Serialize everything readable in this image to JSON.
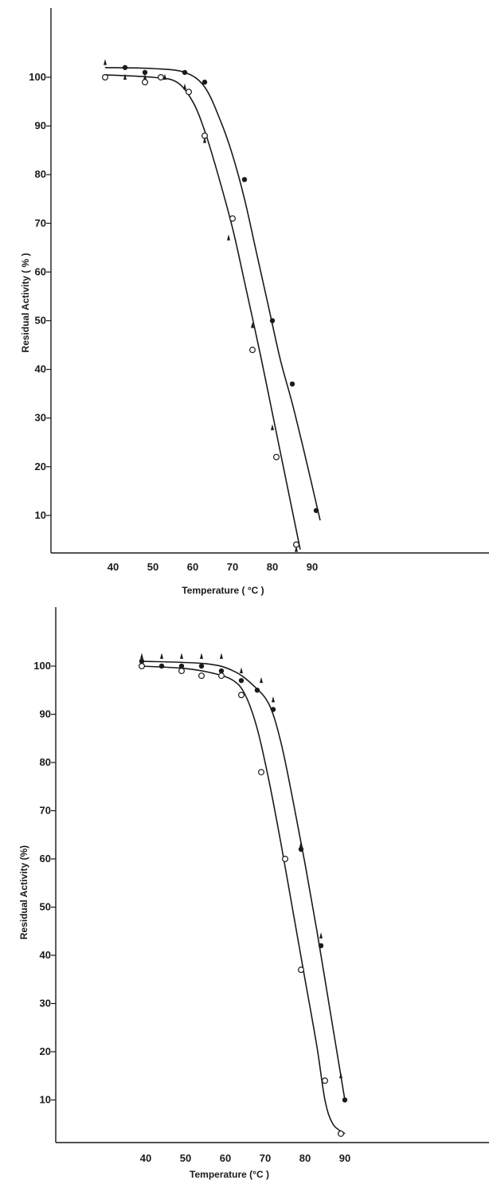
{
  "chart_data": [
    {
      "type": "line",
      "title": "",
      "xlabel": "Temperature ( °C )",
      "ylabel": "Residual Activity ( % )",
      "xlim": [
        30,
        100
      ],
      "ylim": [
        0,
        110
      ],
      "xticks": [
        40,
        50,
        60,
        70,
        80,
        90
      ],
      "yticks": [
        10,
        20,
        30,
        40,
        50,
        60,
        70,
        80,
        90,
        100
      ],
      "grid": false,
      "series": [
        {
          "marker": "filled-circle",
          "points": [
            [
              43,
              102
            ],
            [
              48,
              101
            ],
            [
              58,
              101
            ],
            [
              63,
              99
            ],
            [
              73,
              79
            ],
            [
              80,
              50
            ],
            [
              85,
              37
            ],
            [
              91,
              11
            ]
          ],
          "curve": [
            [
              38,
              102
            ],
            [
              50,
              101.8
            ],
            [
              58,
              101
            ],
            [
              63,
              98
            ],
            [
              67,
              91
            ],
            [
              70,
              84
            ],
            [
              73,
              75
            ],
            [
              76,
              64
            ],
            [
              79,
              53
            ],
            [
              82,
              42
            ],
            [
              85,
              33
            ],
            [
              88,
              23
            ],
            [
              92,
              9
            ]
          ]
        },
        {
          "marker": "open-circle",
          "points": [
            [
              38,
              100
            ],
            [
              48,
              99
            ],
            [
              52,
              100
            ],
            [
              59,
              97
            ],
            [
              63,
              88
            ],
            [
              70,
              71
            ],
            [
              75,
              44
            ],
            [
              81,
              22
            ],
            [
              86,
              4
            ]
          ],
          "curve": [
            [
              38,
              100.5
            ],
            [
              50,
              100
            ],
            [
              56,
              99
            ],
            [
              60,
              95
            ],
            [
              63,
              89
            ],
            [
              66,
              81
            ],
            [
              70,
              69
            ],
            [
              73,
              58
            ],
            [
              77,
              43
            ],
            [
              80,
              31
            ],
            [
              83,
              19
            ],
            [
              87,
              3
            ]
          ]
        },
        {
          "marker": "triangle",
          "points": [
            [
              38,
              103
            ],
            [
              43,
              100
            ],
            [
              48,
              100
            ],
            [
              53,
              100
            ],
            [
              58,
              98
            ],
            [
              63,
              87
            ],
            [
              69,
              67
            ],
            [
              75,
              49
            ],
            [
              80,
              28
            ],
            [
              86,
              3
            ]
          ]
        }
      ]
    },
    {
      "type": "line",
      "title": "",
      "xlabel": "Temperature (°C )",
      "ylabel": "Residual Activity (%)",
      "xlim": [
        30,
        100
      ],
      "ylim": [
        0,
        110
      ],
      "xticks": [
        40,
        50,
        60,
        70,
        80,
        90
      ],
      "yticks": [
        10,
        20,
        30,
        40,
        50,
        60,
        70,
        80,
        90,
        100
      ],
      "grid": false,
      "series": [
        {
          "marker": "filled-circle",
          "points": [
            [
              39,
              101
            ],
            [
              44,
              100
            ],
            [
              49,
              100
            ],
            [
              54,
              100
            ],
            [
              59,
              99
            ],
            [
              64,
              97
            ],
            [
              68,
              95
            ],
            [
              72,
              91
            ],
            [
              79,
              62
            ],
            [
              84,
              42
            ],
            [
              90,
              10
            ]
          ],
          "curve": [
            [
              39,
              101
            ],
            [
              55,
              100.5
            ],
            [
              62,
              99
            ],
            [
              67,
              96
            ],
            [
              71,
              92
            ],
            [
              74,
              84
            ],
            [
              77,
              72
            ],
            [
              80,
              59
            ],
            [
              83,
              45
            ],
            [
              86,
              30
            ],
            [
              89,
              15
            ],
            [
              90,
              10
            ]
          ]
        },
        {
          "marker": "open-circle",
          "points": [
            [
              39,
              100
            ],
            [
              49,
              99
            ],
            [
              54,
              98
            ],
            [
              59,
              98
            ],
            [
              64,
              94
            ],
            [
              69,
              78
            ],
            [
              75,
              60
            ],
            [
              79,
              37
            ],
            [
              85,
              14
            ],
            [
              89,
              3
            ]
          ],
          "curve": [
            [
              39,
              100
            ],
            [
              50,
              99.5
            ],
            [
              57,
              98.5
            ],
            [
              62,
              97
            ],
            [
              65,
              94
            ],
            [
              68,
              87
            ],
            [
              71,
              76
            ],
            [
              74,
              63
            ],
            [
              77,
              49
            ],
            [
              80,
              35
            ],
            [
              83,
              21
            ],
            [
              85,
              10
            ],
            [
              87,
              5
            ],
            [
              90,
              3
            ]
          ]
        },
        {
          "marker": "triangle",
          "points": [
            [
              39,
              102
            ],
            [
              44,
              102
            ],
            [
              49,
              102
            ],
            [
              54,
              102
            ],
            [
              59,
              102
            ],
            [
              64,
              99
            ],
            [
              69,
              97
            ],
            [
              72,
              93
            ],
            [
              79,
              63
            ],
            [
              84,
              44
            ],
            [
              89,
              15
            ]
          ]
        }
      ]
    }
  ]
}
